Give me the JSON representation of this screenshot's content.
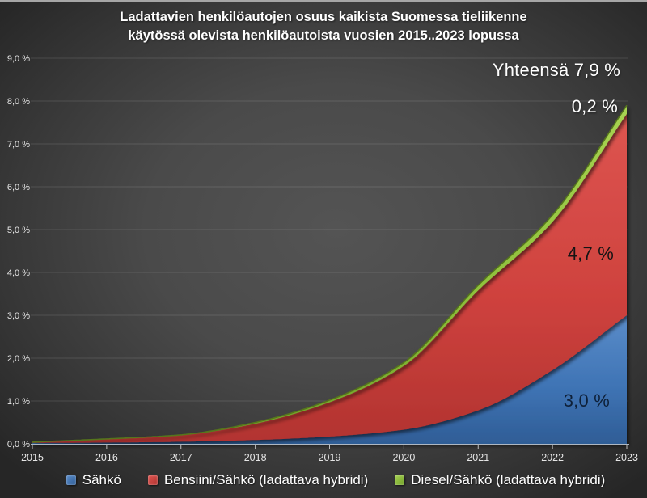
{
  "title": {
    "line1": "Ladattavien henkilöautojen osuus kaikista Suomessa tieliikenne",
    "line2": "käytössä olevista henkilöautoista vuosien 2015..2023 lopussa"
  },
  "chart_data": {
    "type": "area",
    "stacked": true,
    "smooth": true,
    "x": [
      2015,
      2016,
      2017,
      2018,
      2019,
      2020,
      2021,
      2022,
      2023
    ],
    "series": [
      {
        "name": "Sähkö",
        "color": "#3f74b5",
        "color_light": "#5a8cc9",
        "color_dark": "#2f5d96",
        "values": [
          0.02,
          0.03,
          0.05,
          0.09,
          0.17,
          0.33,
          0.78,
          1.72,
          3.0
        ]
      },
      {
        "name": "Bensiini/Sähkö (ladattava hybridi)",
        "color": "#cf423e",
        "color_light": "#dd5550",
        "color_dark": "#b23330",
        "values": [
          0.02,
          0.08,
          0.15,
          0.38,
          0.8,
          1.49,
          2.8,
          3.46,
          4.7
        ]
      },
      {
        "name": "Diesel/Sähkö (ladattava hybridi)",
        "color": "#8fc13c",
        "color_light": "#a8d352",
        "color_dark": "#70a028",
        "values": [
          0.0,
          0.005,
          0.01,
          0.03,
          0.05,
          0.08,
          0.12,
          0.16,
          0.2
        ]
      }
    ],
    "ylim": [
      0,
      9
    ],
    "ytick_step": 1,
    "ytick_labels": [
      "0,0 %",
      "1,0 %",
      "2,0 %",
      "3,0 %",
      "4,0 %",
      "5,0 %",
      "6,0 %",
      "7,0 %",
      "8,0 %",
      "9,0 %"
    ],
    "grid": true,
    "legend_position": "bottom",
    "annotations": [
      {
        "id": "total",
        "text": "Yhteensä 7,9 %",
        "value": 7.9
      },
      {
        "id": "diesel-share",
        "text": "0,2 %",
        "value": 0.2
      },
      {
        "id": "bensiini-share",
        "text": "4,7 %",
        "value": 4.7
      },
      {
        "id": "sahko-share",
        "text": "3,0 %",
        "value": 3.0
      }
    ],
    "axis_colors": {
      "axis_line": "#aeb7c2",
      "tick": "#c0c0c0",
      "grid": "rgba(255,255,255,0.12)",
      "label": "#e6e6e6"
    }
  }
}
